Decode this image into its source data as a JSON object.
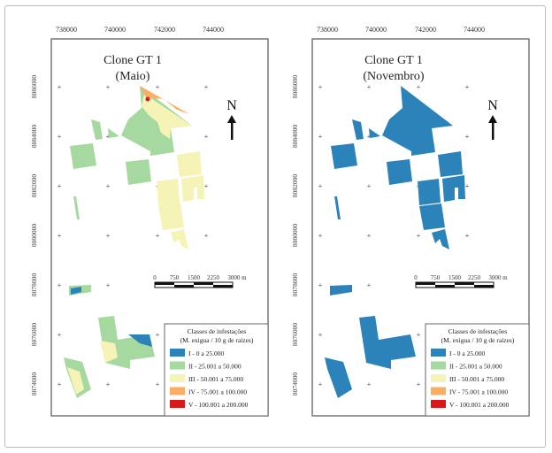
{
  "colors": {
    "class_I": "#2b83ba",
    "class_II": "#a6d99f",
    "class_III": "#f5f3b5",
    "class_IV": "#fcad64",
    "class_V": "#d7191c"
  },
  "x_ticks": [
    "738000",
    "740000",
    "742000",
    "744000"
  ],
  "y_ticks": [
    "8086000",
    "8084000",
    "8082000",
    "8080000",
    "8078000",
    "8076000",
    "8074000"
  ],
  "north_label": "N",
  "scale_bar": {
    "labels": [
      "0",
      "750",
      "1500",
      "2250",
      "3000 m"
    ]
  },
  "legend": {
    "title_line1": "Classes de infestações",
    "title_line2": "(M. exigua / 10 g de raízes)",
    "items": [
      {
        "label": "I - 0 a 25.000",
        "color": "#2b83ba"
      },
      {
        "label": "II - 25.001 a 50.000",
        "color": "#a6d99f"
      },
      {
        "label": "III - 50.001 a 75.000",
        "color": "#f5f3b5"
      },
      {
        "label": "IV - 75.001 a 100.000",
        "color": "#fcad64"
      },
      {
        "label": "V - 100.001 a 200.000",
        "color": "#d7191c"
      }
    ]
  },
  "maps": [
    {
      "title": "Clone GT 1",
      "subtitle": "(Maio)"
    },
    {
      "title": "Clone GT 1",
      "subtitle": "(Novembro)"
    }
  ]
}
